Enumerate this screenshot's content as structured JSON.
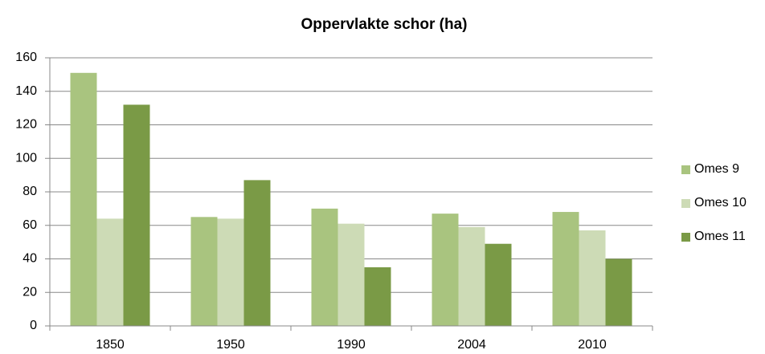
{
  "chart_data": {
    "type": "bar",
    "title": "Oppervlakte schor (ha)",
    "categories": [
      "1850",
      "1950",
      "1990",
      "2004",
      "2010"
    ],
    "series": [
      {
        "name": "Omes 9",
        "color": "#a9c47f",
        "values": [
          151,
          65,
          70,
          67,
          68
        ]
      },
      {
        "name": "Omes 10",
        "color": "#cddbb6",
        "values": [
          64,
          64,
          61,
          59,
          57
        ]
      },
      {
        "name": "Omes 11",
        "color": "#7a9a46",
        "values": [
          132,
          87,
          35,
          49,
          40
        ]
      }
    ],
    "ylim": [
      0,
      160
    ],
    "yticks": [
      0,
      20,
      40,
      60,
      80,
      100,
      120,
      140,
      160
    ],
    "grid": true,
    "legend": "right"
  }
}
